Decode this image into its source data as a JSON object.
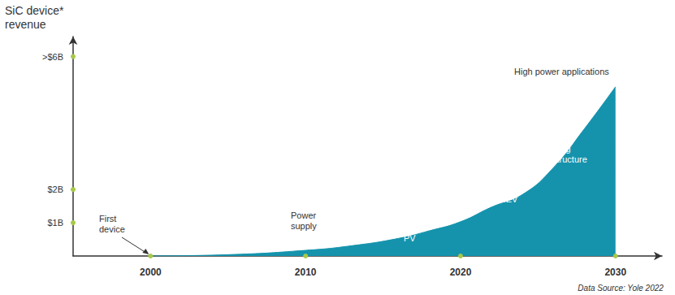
{
  "chart_data": {
    "type": "area",
    "y_label": "SiC device* revenue",
    "x": [
      2000,
      2005,
      2010,
      2013,
      2016,
      2018,
      2020,
      2022,
      2024,
      2026,
      2028,
      2030
    ],
    "values": [
      0,
      0.04,
      0.17,
      0.31,
      0.53,
      0.76,
      1.03,
      1.47,
      1.85,
      2.66,
      3.83,
      5.09
    ],
    "color": "#1593ad",
    "xlim": [
      1995,
      2033
    ],
    "xticks": [
      2000,
      2010,
      2020,
      2030
    ],
    "ylim": [
      0,
      6.6
    ],
    "yticks": [
      {
        "value": 1,
        "label": "$1B"
      },
      {
        "value": 2,
        "label": "$2B"
      },
      {
        "value": 6,
        "label": ">$6B"
      }
    ],
    "annotations": [
      "First device",
      "Power supply",
      "PV",
      "EV/HEV",
      "Charging Infrastructure",
      "High power applications"
    ],
    "source": "Data Source: Yole 2022",
    "grid": false
  }
}
